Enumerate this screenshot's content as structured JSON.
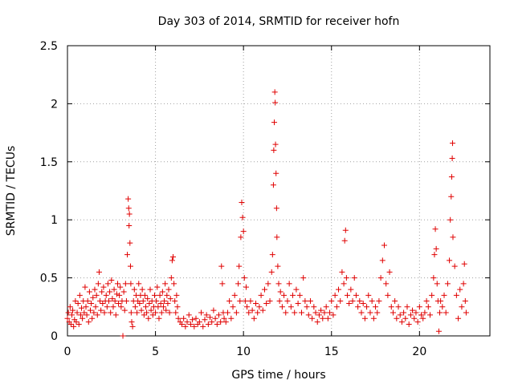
{
  "chart_data": {
    "type": "scatter",
    "title": "Day 303 of 2014, SRMTID for receiver hofn",
    "xlabel": "GPS time / hours",
    "ylabel": "SRMTID / TECUs",
    "xlim": [
      0,
      24
    ],
    "ylim": [
      0,
      2.5
    ],
    "x_ticks": [
      0,
      5,
      10,
      15,
      20
    ],
    "x_tick_labels": [
      "0",
      "5",
      "10",
      "15",
      "20"
    ],
    "y_ticks": [
      0,
      0.5,
      1,
      1.5,
      2,
      2.5
    ],
    "y_tick_labels": [
      "0",
      "0.5",
      "1",
      "1.5",
      "2",
      "2.5"
    ],
    "grid": true,
    "marker": "+",
    "color": "#e00000",
    "series": [
      {
        "name": "SRMTID",
        "points": [
          [
            0.0,
            0.15
          ],
          [
            0.05,
            0.2
          ],
          [
            0.1,
            0.12
          ],
          [
            0.15,
            0.25
          ],
          [
            0.2,
            0.1
          ],
          [
            0.25,
            0.18
          ],
          [
            0.3,
            0.22
          ],
          [
            0.35,
            0.08
          ],
          [
            0.4,
            0.14
          ],
          [
            0.45,
            0.3
          ],
          [
            0.5,
            0.12
          ],
          [
            0.55,
            0.2
          ],
          [
            0.6,
            0.28
          ],
          [
            0.65,
            0.1
          ],
          [
            0.7,
            0.35
          ],
          [
            0.75,
            0.18
          ],
          [
            0.8,
            0.24
          ],
          [
            0.85,
            0.15
          ],
          [
            0.9,
            0.3
          ],
          [
            0.95,
            0.2
          ],
          [
            1.0,
            0.42
          ],
          [
            1.05,
            0.25
          ],
          [
            1.1,
            0.18
          ],
          [
            1.15,
            0.3
          ],
          [
            1.2,
            0.12
          ],
          [
            1.25,
            0.38
          ],
          [
            1.3,
            0.22
          ],
          [
            1.35,
            0.28
          ],
          [
            1.4,
            0.15
          ],
          [
            1.45,
            0.33
          ],
          [
            1.5,
            0.2
          ],
          [
            1.55,
            0.4
          ],
          [
            1.6,
            0.25
          ],
          [
            1.65,
            0.35
          ],
          [
            1.7,
            0.18
          ],
          [
            1.75,
            0.45
          ],
          [
            1.8,
            0.55
          ],
          [
            1.85,
            0.3
          ],
          [
            1.9,
            0.22
          ],
          [
            1.95,
            0.38
          ],
          [
            2.0,
            0.28
          ],
          [
            2.05,
            0.42
          ],
          [
            2.1,
            0.2
          ],
          [
            2.15,
            0.3
          ],
          [
            2.2,
            0.35
          ],
          [
            2.25,
            0.25
          ],
          [
            2.3,
            0.45
          ],
          [
            2.35,
            0.3
          ],
          [
            2.4,
            0.38
          ],
          [
            2.45,
            0.2
          ],
          [
            2.5,
            0.48
          ],
          [
            2.55,
            0.32
          ],
          [
            2.6,
            0.25
          ],
          [
            2.65,
            0.4
          ],
          [
            2.7,
            0.3
          ],
          [
            2.75,
            0.18
          ],
          [
            2.8,
            0.36
          ],
          [
            2.85,
            0.45
          ],
          [
            2.9,
            0.28
          ],
          [
            2.95,
            0.35
          ],
          [
            3.0,
            0.42
          ],
          [
            3.05,
            0.25
          ],
          [
            3.1,
            0.3
          ],
          [
            3.15,
            0.0
          ],
          [
            3.2,
            0.38
          ],
          [
            3.25,
            0.22
          ],
          [
            3.3,
            0.45
          ],
          [
            3.35,
            0.3
          ],
          [
            3.4,
            0.7
          ],
          [
            3.45,
            1.18
          ],
          [
            3.48,
            1.1
          ],
          [
            3.5,
            0.95
          ],
          [
            3.52,
            1.05
          ],
          [
            3.55,
            0.8
          ],
          [
            3.58,
            0.6
          ],
          [
            3.6,
            0.45
          ],
          [
            3.62,
            0.2
          ],
          [
            3.65,
            0.12
          ],
          [
            3.7,
            0.08
          ],
          [
            3.75,
            0.3
          ],
          [
            3.8,
            0.4
          ],
          [
            3.85,
            0.25
          ],
          [
            3.9,
            0.35
          ],
          [
            3.95,
            0.2
          ],
          [
            4.0,
            0.3
          ],
          [
            4.05,
            0.45
          ],
          [
            4.1,
            0.28
          ],
          [
            4.15,
            0.35
          ],
          [
            4.2,
            0.22
          ],
          [
            4.25,
            0.4
          ],
          [
            4.3,
            0.3
          ],
          [
            4.35,
            0.18
          ],
          [
            4.4,
            0.35
          ],
          [
            4.45,
            0.25
          ],
          [
            4.5,
            0.2
          ],
          [
            4.55,
            0.32
          ],
          [
            4.6,
            0.15
          ],
          [
            4.65,
            0.28
          ],
          [
            4.7,
            0.4
          ],
          [
            4.75,
            0.22
          ],
          [
            4.8,
            0.3
          ],
          [
            4.85,
            0.18
          ],
          [
            4.9,
            0.25
          ],
          [
            4.95,
            0.35
          ],
          [
            5.0,
            0.2
          ],
          [
            5.05,
            0.3
          ],
          [
            5.1,
            0.42
          ],
          [
            5.15,
            0.25
          ],
          [
            5.2,
            0.15
          ],
          [
            5.25,
            0.35
          ],
          [
            5.3,
            0.28
          ],
          [
            5.35,
            0.2
          ],
          [
            5.4,
            0.38
          ],
          [
            5.45,
            0.25
          ],
          [
            5.5,
            0.3
          ],
          [
            5.55,
            0.45
          ],
          [
            5.6,
            0.22
          ],
          [
            5.65,
            0.35
          ],
          [
            5.7,
            0.28
          ],
          [
            5.75,
            0.4
          ],
          [
            5.8,
            0.2
          ],
          [
            5.85,
            0.32
          ],
          [
            5.9,
            0.5
          ],
          [
            5.95,
            0.65
          ],
          [
            6.0,
            0.68
          ],
          [
            6.05,
            0.45
          ],
          [
            6.1,
            0.3
          ],
          [
            6.15,
            0.2
          ],
          [
            6.2,
            0.35
          ],
          [
            6.25,
            0.25
          ],
          [
            6.3,
            0.15
          ],
          [
            6.4,
            0.12
          ],
          [
            6.5,
            0.1
          ],
          [
            6.6,
            0.15
          ],
          [
            6.7,
            0.08
          ],
          [
            6.8,
            0.12
          ],
          [
            6.9,
            0.18
          ],
          [
            7.0,
            0.1
          ],
          [
            7.1,
            0.14
          ],
          [
            7.2,
            0.08
          ],
          [
            7.3,
            0.15
          ],
          [
            7.4,
            0.1
          ],
          [
            7.5,
            0.12
          ],
          [
            7.6,
            0.2
          ],
          [
            7.7,
            0.08
          ],
          [
            7.8,
            0.14
          ],
          [
            7.9,
            0.18
          ],
          [
            8.0,
            0.1
          ],
          [
            8.1,
            0.16
          ],
          [
            8.2,
            0.12
          ],
          [
            8.3,
            0.22
          ],
          [
            8.4,
            0.15
          ],
          [
            8.5,
            0.1
          ],
          [
            8.6,
            0.18
          ],
          [
            8.7,
            0.12
          ],
          [
            8.75,
            0.6
          ],
          [
            8.8,
            0.45
          ],
          [
            8.85,
            0.2
          ],
          [
            8.9,
            0.15
          ],
          [
            9.0,
            0.12
          ],
          [
            9.1,
            0.2
          ],
          [
            9.2,
            0.3
          ],
          [
            9.3,
            0.15
          ],
          [
            9.4,
            0.25
          ],
          [
            9.5,
            0.35
          ],
          [
            9.6,
            0.2
          ],
          [
            9.7,
            0.45
          ],
          [
            9.75,
            0.6
          ],
          [
            9.8,
            0.3
          ],
          [
            9.85,
            0.85
          ],
          [
            9.9,
            1.15
          ],
          [
            9.95,
            1.02
          ],
          [
            10.0,
            0.9
          ],
          [
            10.05,
            0.5
          ],
          [
            10.1,
            0.3
          ],
          [
            10.15,
            0.42
          ],
          [
            10.2,
            0.25
          ],
          [
            10.3,
            0.2
          ],
          [
            10.4,
            0.3
          ],
          [
            10.5,
            0.22
          ],
          [
            10.6,
            0.15
          ],
          [
            10.7,
            0.28
          ],
          [
            10.8,
            0.2
          ],
          [
            10.9,
            0.25
          ],
          [
            11.0,
            0.35
          ],
          [
            11.1,
            0.22
          ],
          [
            11.2,
            0.4
          ],
          [
            11.3,
            0.28
          ],
          [
            11.4,
            0.45
          ],
          [
            11.5,
            0.3
          ],
          [
            11.6,
            0.55
          ],
          [
            11.65,
            0.7
          ],
          [
            11.7,
            1.3
          ],
          [
            11.72,
            1.6
          ],
          [
            11.75,
            1.84
          ],
          [
            11.78,
            2.1
          ],
          [
            11.8,
            2.01
          ],
          [
            11.82,
            1.65
          ],
          [
            11.85,
            1.4
          ],
          [
            11.88,
            1.1
          ],
          [
            11.9,
            0.85
          ],
          [
            11.95,
            0.6
          ],
          [
            12.0,
            0.45
          ],
          [
            12.05,
            0.3
          ],
          [
            12.1,
            0.38
          ],
          [
            12.2,
            0.25
          ],
          [
            12.3,
            0.35
          ],
          [
            12.4,
            0.2
          ],
          [
            12.5,
            0.3
          ],
          [
            12.6,
            0.45
          ],
          [
            12.7,
            0.25
          ],
          [
            12.8,
            0.35
          ],
          [
            12.9,
            0.2
          ],
          [
            13.0,
            0.4
          ],
          [
            13.1,
            0.28
          ],
          [
            13.2,
            0.35
          ],
          [
            13.3,
            0.2
          ],
          [
            13.4,
            0.5
          ],
          [
            13.5,
            0.3
          ],
          [
            13.6,
            0.25
          ],
          [
            13.7,
            0.18
          ],
          [
            13.8,
            0.3
          ],
          [
            13.9,
            0.15
          ],
          [
            14.0,
            0.25
          ],
          [
            14.1,
            0.2
          ],
          [
            14.2,
            0.12
          ],
          [
            14.3,
            0.18
          ],
          [
            14.4,
            0.22
          ],
          [
            14.5,
            0.15
          ],
          [
            14.6,
            0.2
          ],
          [
            14.7,
            0.25
          ],
          [
            14.8,
            0.15
          ],
          [
            14.9,
            0.2
          ],
          [
            15.0,
            0.3
          ],
          [
            15.1,
            0.18
          ],
          [
            15.2,
            0.35
          ],
          [
            15.3,
            0.25
          ],
          [
            15.4,
            0.4
          ],
          [
            15.5,
            0.3
          ],
          [
            15.6,
            0.55
          ],
          [
            15.7,
            0.45
          ],
          [
            15.75,
            0.82
          ],
          [
            15.8,
            0.91
          ],
          [
            15.85,
            0.5
          ],
          [
            15.9,
            0.35
          ],
          [
            16.0,
            0.28
          ],
          [
            16.1,
            0.4
          ],
          [
            16.2,
            0.3
          ],
          [
            16.3,
            0.5
          ],
          [
            16.4,
            0.35
          ],
          [
            16.5,
            0.25
          ],
          [
            16.6,
            0.3
          ],
          [
            16.7,
            0.2
          ],
          [
            16.8,
            0.28
          ],
          [
            16.9,
            0.15
          ],
          [
            17.0,
            0.25
          ],
          [
            17.1,
            0.35
          ],
          [
            17.2,
            0.2
          ],
          [
            17.3,
            0.3
          ],
          [
            17.4,
            0.15
          ],
          [
            17.5,
            0.25
          ],
          [
            17.6,
            0.2
          ],
          [
            17.7,
            0.3
          ],
          [
            17.8,
            0.5
          ],
          [
            17.9,
            0.65
          ],
          [
            18.0,
            0.78
          ],
          [
            18.1,
            0.45
          ],
          [
            18.2,
            0.35
          ],
          [
            18.3,
            0.55
          ],
          [
            18.4,
            0.25
          ],
          [
            18.5,
            0.2
          ],
          [
            18.6,
            0.3
          ],
          [
            18.7,
            0.15
          ],
          [
            18.8,
            0.25
          ],
          [
            18.9,
            0.18
          ],
          [
            19.0,
            0.12
          ],
          [
            19.1,
            0.2
          ],
          [
            19.2,
            0.15
          ],
          [
            19.3,
            0.25
          ],
          [
            19.4,
            0.1
          ],
          [
            19.5,
            0.18
          ],
          [
            19.6,
            0.22
          ],
          [
            19.7,
            0.15
          ],
          [
            19.8,
            0.2
          ],
          [
            19.9,
            0.12
          ],
          [
            20.0,
            0.25
          ],
          [
            20.1,
            0.18
          ],
          [
            20.2,
            0.15
          ],
          [
            20.3,
            0.2
          ],
          [
            20.4,
            0.3
          ],
          [
            20.5,
            0.25
          ],
          [
            20.6,
            0.18
          ],
          [
            20.7,
            0.35
          ],
          [
            20.8,
            0.5
          ],
          [
            20.85,
            0.7
          ],
          [
            20.9,
            0.92
          ],
          [
            20.95,
            0.75
          ],
          [
            21.0,
            0.45
          ],
          [
            21.05,
            0.3
          ],
          [
            21.1,
            0.04
          ],
          [
            21.15,
            0.2
          ],
          [
            21.2,
            0.3
          ],
          [
            21.3,
            0.25
          ],
          [
            21.4,
            0.35
          ],
          [
            21.5,
            0.2
          ],
          [
            21.6,
            0.45
          ],
          [
            21.7,
            0.65
          ],
          [
            21.75,
            1.0
          ],
          [
            21.8,
            1.2
          ],
          [
            21.83,
            1.37
          ],
          [
            21.86,
            1.53
          ],
          [
            21.88,
            1.66
          ],
          [
            21.9,
            0.85
          ],
          [
            22.0,
            0.6
          ],
          [
            22.1,
            0.35
          ],
          [
            22.2,
            0.15
          ],
          [
            22.3,
            0.4
          ],
          [
            22.4,
            0.25
          ],
          [
            22.5,
            0.45
          ],
          [
            22.55,
            0.62
          ],
          [
            22.6,
            0.3
          ],
          [
            22.65,
            0.2
          ]
        ]
      }
    ]
  }
}
